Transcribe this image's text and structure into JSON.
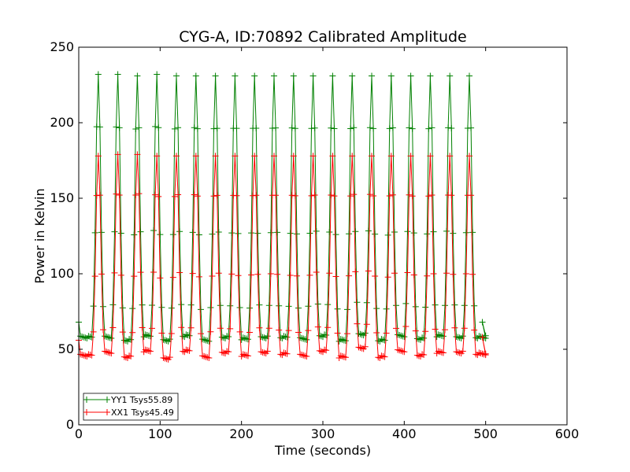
{
  "chart_data": {
    "type": "line",
    "title": "CYG-A, ID:70892 Calibrated Amplitude",
    "xlabel": "Time (seconds)",
    "ylabel": "Power in Kelvin",
    "xlim": [
      0,
      600
    ],
    "ylim": [
      0,
      250
    ],
    "xticks": [
      0,
      100,
      200,
      300,
      400,
      500,
      600
    ],
    "yticks": [
      0,
      50,
      100,
      150,
      200,
      250
    ],
    "xtick_labels": [
      "0",
      "100",
      "200",
      "300",
      "400",
      "500",
      "600"
    ],
    "ytick_labels": [
      "0",
      "50",
      "100",
      "150",
      "200",
      "250"
    ],
    "grid": false,
    "legend_position": "lower-left",
    "marker": "+",
    "pulse_period_s": 24,
    "pulse_count": 20,
    "series": [
      {
        "name": "YY1 Tsys55.89",
        "color": "#008000",
        "start": 68,
        "end_spike": 68,
        "end": 59,
        "baseline": [
          58,
          58,
          56,
          59,
          56,
          59,
          56,
          58,
          57,
          58,
          58,
          57,
          59,
          56,
          60,
          56,
          59,
          57,
          59,
          58,
          58
        ],
        "peaks": [
          232,
          232,
          231,
          232,
          231,
          231,
          231,
          231,
          231,
          231,
          231,
          231,
          231,
          231,
          231,
          231,
          231,
          231,
          231,
          231
        ]
      },
      {
        "name": "XX1 Tsys45.49",
        "color": "#ff0000",
        "start": 56,
        "end_spike": 58,
        "end": 47,
        "baseline": [
          46,
          48,
          45,
          49,
          44,
          49,
          45,
          48,
          46,
          48,
          47,
          46,
          49,
          45,
          51,
          45,
          49,
          46,
          48,
          48,
          47
        ],
        "peaks": [
          178,
          179,
          179,
          178,
          178,
          178,
          178,
          178,
          178,
          178,
          178,
          178,
          178,
          178,
          178,
          178,
          178,
          178,
          178,
          178
        ]
      }
    ]
  }
}
